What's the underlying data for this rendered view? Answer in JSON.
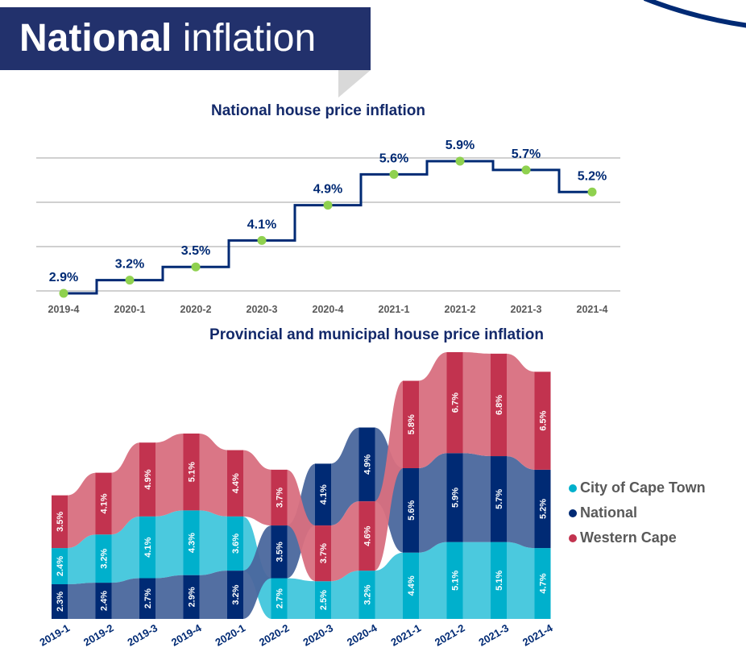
{
  "banner": {
    "title_bold": "National",
    "title_rest": "inflation"
  },
  "colors": {
    "banner": "#22316c",
    "national": "#002a74",
    "national_flow": "#4a679d",
    "cape_town": "#00b0cc",
    "cape_town_flow": "#41c6dc",
    "western_cape": "#c2334f",
    "western_cape_flow": "#d86f80",
    "marker": "#8fd14f",
    "title": "#13296a",
    "axis_label": "#595959",
    "gridline": "#d0d0d0"
  },
  "chart_data": [
    {
      "type": "line",
      "style": "step",
      "title": "National house price inflation",
      "xlabel": "",
      "ylabel": "",
      "categories": [
        "2019-4",
        "2020-1",
        "2020-2",
        "2020-3",
        "2020-4",
        "2021-1",
        "2021-2",
        "2021-3",
        "2021-4"
      ],
      "series": [
        {
          "name": "National",
          "values": [
            2.9,
            3.2,
            3.5,
            4.1,
            4.9,
            5.6,
            5.9,
            5.7,
            5.2
          ],
          "labels": [
            "2.9%",
            "3.2%",
            "3.5%",
            "4.1%",
            "4.9%",
            "5.6%",
            "5.9%",
            "5.7%",
            "5.2%"
          ]
        }
      ],
      "ylim": [
        2.9,
        5.9
      ],
      "grid": true,
      "legend": "none"
    },
    {
      "type": "bar",
      "style": "ranked-stacked-ribbon",
      "title": "Provincial and municipal house price inflation",
      "xlabel": "",
      "ylabel": "",
      "categories": [
        "2019-1",
        "2019-2",
        "2019-3",
        "2019-4",
        "2020-1",
        "2020-2",
        "2020-3",
        "2020-4",
        "2021-1",
        "2021-2",
        "2021-3",
        "2021-4"
      ],
      "series": [
        {
          "name": "City of Cape Town",
          "key": "cape_town",
          "values": [
            2.4,
            3.2,
            4.1,
            4.3,
            3.6,
            2.7,
            2.5,
            3.2,
            4.4,
            5.1,
            5.1,
            4.7
          ],
          "labels": [
            "2.4%",
            "3.2%",
            "4.1%",
            "4.3%",
            "3.6%",
            "2.7%",
            "2.5%",
            "3.2%",
            "4.4%",
            "5.1%",
            "5.1%",
            "4.7%"
          ]
        },
        {
          "name": "National",
          "key": "national",
          "values": [
            2.3,
            2.4,
            2.7,
            2.9,
            3.2,
            3.5,
            4.1,
            4.9,
            5.6,
            5.9,
            5.7,
            5.2
          ],
          "labels": [
            "2.3%",
            "2.4%",
            "2.7%",
            "2.9%",
            "3.2%",
            "3.5%",
            "4.1%",
            "4.9%",
            "5.6%",
            "5.9%",
            "5.7%",
            "5.2%"
          ]
        },
        {
          "name": "Western Cape",
          "key": "western_cape",
          "values": [
            3.5,
            4.1,
            4.9,
            5.1,
            4.4,
            3.7,
            3.7,
            4.6,
            5.8,
            6.7,
            6.8,
            6.5
          ],
          "labels": [
            "3.5%",
            "4.1%",
            "4.9%",
            "5.1%",
            "4.4%",
            "3.7%",
            "3.7%",
            "4.6%",
            "5.8%",
            "6.7%",
            "6.8%",
            "6.5%"
          ]
        }
      ],
      "stack_order_bottom_to_top": [
        [
          "national",
          "cape_town",
          "western_cape"
        ],
        [
          "national",
          "cape_town",
          "western_cape"
        ],
        [
          "national",
          "cape_town",
          "western_cape"
        ],
        [
          "national",
          "cape_town",
          "western_cape"
        ],
        [
          "national",
          "cape_town",
          "western_cape"
        ],
        [
          "cape_town",
          "national",
          "western_cape"
        ],
        [
          "cape_town",
          "western_cape",
          "national"
        ],
        [
          "cape_town",
          "western_cape",
          "national"
        ],
        [
          "cape_town",
          "national",
          "western_cape"
        ],
        [
          "cape_town",
          "national",
          "western_cape"
        ],
        [
          "cape_town",
          "national",
          "western_cape"
        ],
        [
          "cape_town",
          "national",
          "western_cape"
        ]
      ],
      "legend": "right",
      "legend_entries": [
        "City of Cape Town",
        "National",
        "Western Cape"
      ]
    }
  ]
}
